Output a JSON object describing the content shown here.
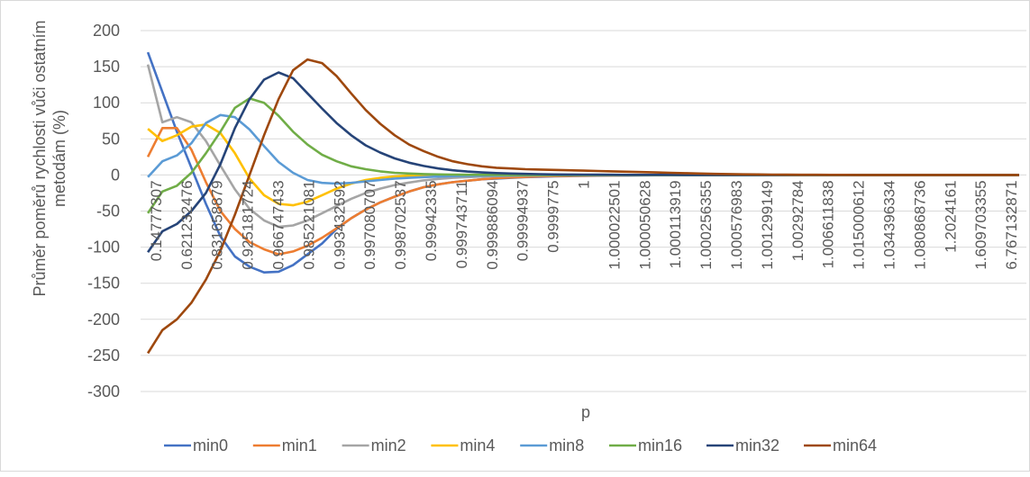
{
  "chart_data": {
    "type": "line",
    "title": "",
    "xlabel": "p",
    "ylabel": "Průměr poměrů rychlosti vůči ostatním metodám (%)",
    "ylim": [
      -300,
      200
    ],
    "yticks": [
      "200",
      "150",
      "100",
      "50",
      "0",
      "-50",
      "-100",
      "-150",
      "-200",
      "-250",
      "-300"
    ],
    "y_tick_values": [
      200,
      150,
      100,
      50,
      0,
      -50,
      -100,
      -150,
      -200,
      -250,
      -300
    ],
    "xtick_labels": [
      "0.14777307",
      "0.621232476",
      "0.831658879",
      "0.925181724",
      "0.966747433",
      "0.985221081",
      "0.993432592",
      "0.997080707",
      "0.998702537",
      "0.99942335",
      "0.999743711",
      "0.999886094",
      "0.99994937",
      "0.9999775",
      "1",
      "1.000022501",
      "1.000050628",
      "1.000113919",
      "1.000256355",
      "1.000576983",
      "1.001299149",
      "1.00292784",
      "1.006611838",
      "1.015000612",
      "1.034396334",
      "1.080868736",
      "1.2024161",
      "1.609703355",
      "6.767132871"
    ],
    "grid": true,
    "legend_position": "bottom",
    "series": [
      {
        "name": "min0",
        "color": "#4472C4",
        "values": [
          170,
          115,
          60,
          10,
          -40,
          -85,
          -113,
          -127,
          -135,
          -134,
          -125,
          -110,
          -95,
          -75,
          -60,
          -48,
          -38,
          -30,
          -23,
          -17,
          -13,
          -10,
          -8,
          -6,
          -5,
          -4,
          -3,
          -2.5,
          -2,
          -1.6,
          -1.3,
          -1,
          -0.8,
          -0.6,
          -0.5,
          -0.4,
          -0.3,
          -0.25,
          -0.2,
          -0.15,
          -0.1,
          -0.08,
          -0.06,
          -0.05,
          -0.04,
          -0.03,
          -0.02,
          -0.02,
          -0.01,
          -0.01,
          -0.01,
          0,
          0,
          0,
          0,
          0,
          0,
          0,
          0,
          0,
          0
        ]
      },
      {
        "name": "min1",
        "color": "#ED7D31",
        "values": [
          25,
          65,
          65,
          35,
          -10,
          -50,
          -75,
          -93,
          -103,
          -110,
          -106,
          -98,
          -87,
          -74,
          -60,
          -48,
          -38,
          -30,
          -23,
          -17,
          -13,
          -10,
          -8,
          -6,
          -4.5,
          -3.5,
          -2.7,
          -2,
          -1.6,
          -1.2,
          -1,
          -0.8,
          -0.6,
          -0.5,
          -0.4,
          -0.3,
          -0.25,
          -0.2,
          -0.15,
          -0.1,
          -0.08,
          -0.06,
          -0.05,
          -0.04,
          -0.03,
          -0.02,
          -0.02,
          -0.01,
          -0.01,
          0,
          0,
          0,
          0,
          0,
          0,
          0,
          0,
          0,
          0,
          0,
          0
        ]
      },
      {
        "name": "min2",
        "color": "#A5A5A5",
        "values": [
          153,
          73,
          80,
          73,
          47,
          13,
          -20,
          -47,
          -63,
          -72,
          -70,
          -63,
          -53,
          -43,
          -33,
          -25,
          -19,
          -14,
          -10.5,
          -7.5,
          -5.5,
          -4,
          -3,
          -2.2,
          -1.6,
          -1.2,
          -0.9,
          -0.7,
          -0.5,
          -0.4,
          -0.3,
          -0.25,
          -0.2,
          -0.15,
          -0.1,
          -0.08,
          -0.06,
          -0.05,
          -0.04,
          -0.03,
          -0.02,
          -0.02,
          -0.01,
          -0.01,
          0,
          0,
          0,
          0,
          0,
          0,
          0,
          0,
          0,
          0,
          0,
          0,
          0,
          0,
          0,
          0,
          0
        ]
      },
      {
        "name": "min4",
        "color": "#FFC000",
        "values": [
          64,
          47,
          55,
          67,
          70,
          58,
          30,
          -5,
          -28,
          -40,
          -42,
          -37,
          -28,
          -19,
          -12,
          -7,
          -4,
          -2,
          -1,
          -0.5,
          -0.2,
          -0.1,
          0,
          0,
          0,
          0,
          0,
          0,
          0,
          0,
          0,
          0,
          0,
          0,
          0,
          0,
          0,
          0,
          0,
          0,
          0,
          0,
          0,
          0,
          0,
          0,
          0,
          0,
          0,
          0,
          0,
          0,
          0,
          0,
          0,
          0,
          0,
          0,
          0,
          0,
          0
        ]
      },
      {
        "name": "min8",
        "color": "#5B9BD5",
        "values": [
          -3,
          19,
          27,
          44,
          72,
          83,
          80,
          63,
          40,
          18,
          3,
          -7,
          -11,
          -12,
          -11,
          -9,
          -7,
          -5,
          -4,
          -3,
          -2.2,
          -1.6,
          -1.2,
          -0.9,
          -0.7,
          -0.5,
          -0.4,
          -0.3,
          -0.2,
          -0.15,
          -0.1,
          -0.08,
          -0.05,
          -0.03,
          -0.02,
          -0.01,
          0,
          0,
          0,
          0,
          0,
          0,
          0,
          0,
          0,
          0,
          0,
          0,
          0,
          0,
          0,
          0,
          0,
          0,
          0,
          0,
          0,
          0,
          0,
          0,
          0
        ]
      },
      {
        "name": "min16",
        "color": "#70AD47",
        "values": [
          -53,
          -23,
          -15,
          3,
          30,
          60,
          93,
          106,
          100,
          82,
          60,
          42,
          28,
          19,
          12,
          8,
          5,
          3,
          2,
          1.2,
          0.8,
          0.5,
          0.3,
          0.2,
          0.1,
          0.05,
          0.02,
          0,
          0,
          0,
          0,
          0,
          0,
          0,
          0,
          0,
          0,
          0,
          0,
          0,
          0,
          0,
          0,
          0,
          0,
          0,
          0,
          0,
          0,
          0,
          0,
          0,
          0,
          0,
          0,
          0,
          0,
          0,
          0,
          0,
          0
        ]
      },
      {
        "name": "min32",
        "color": "#264478",
        "values": [
          -107,
          -78,
          -68,
          -50,
          -25,
          15,
          65,
          105,
          132,
          142,
          134,
          113,
          92,
          72,
          55,
          41,
          31,
          23,
          17,
          12.5,
          9,
          6.5,
          4.8,
          3.5,
          2.6,
          2,
          1.5,
          1.1,
          0.8,
          0.6,
          0.45,
          0.35,
          0.25,
          0.18,
          0.13,
          0.1,
          0.07,
          0.05,
          0.03,
          0.02,
          0.01,
          0,
          0,
          0,
          0,
          0,
          0,
          0,
          0,
          0,
          0,
          0,
          0,
          0,
          0,
          0,
          0,
          0,
          0,
          0,
          0
        ]
      },
      {
        "name": "min64",
        "color": "#9E480E",
        "values": [
          -247,
          -215,
          -200,
          -177,
          -145,
          -105,
          -55,
          0,
          55,
          105,
          145,
          160,
          155,
          137,
          113,
          90,
          71,
          55,
          42,
          33,
          25,
          19,
          15,
          12,
          10,
          9,
          8,
          7.5,
          7,
          6.5,
          6,
          5.5,
          5,
          4.5,
          4,
          3.5,
          3,
          2.5,
          2,
          1.5,
          1.2,
          0.9,
          0.7,
          0.5,
          0.4,
          0.3,
          0.2,
          0.15,
          0.1,
          0.05,
          0,
          0,
          0,
          0,
          0,
          0,
          0,
          0,
          0,
          0,
          0
        ]
      }
    ]
  }
}
